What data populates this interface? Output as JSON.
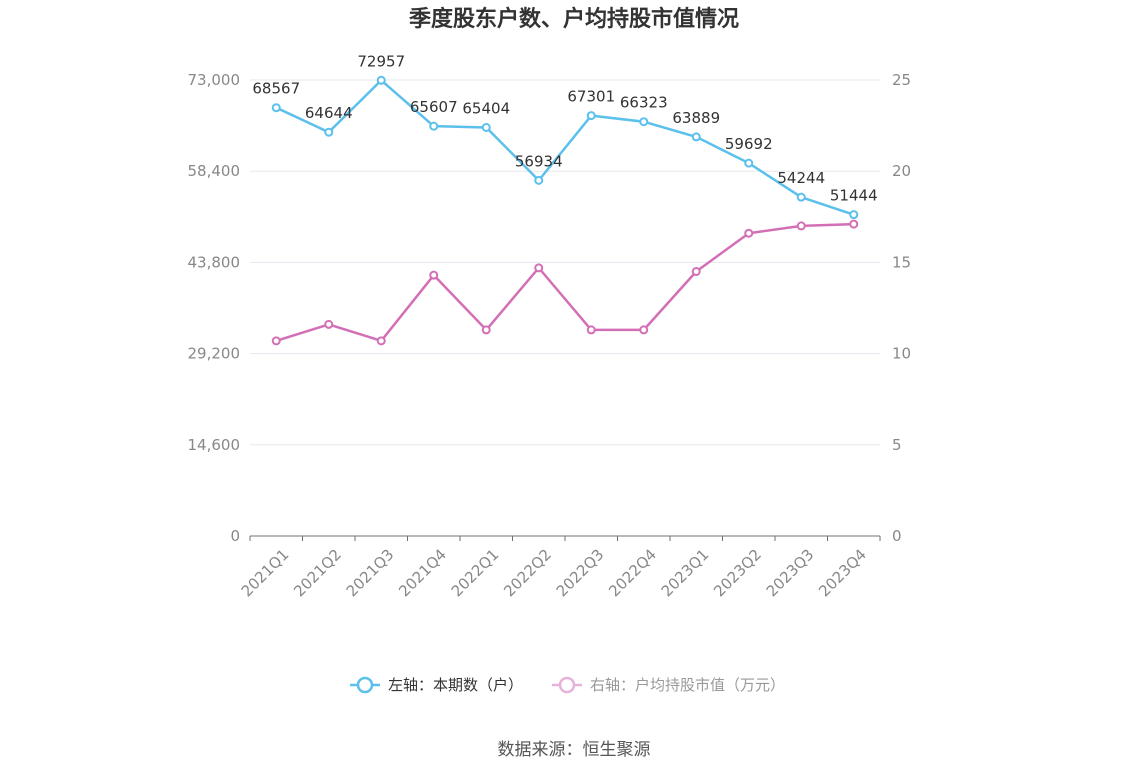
{
  "chart_data": {
    "type": "line",
    "title": "季度股东户数、户均持股市值情况",
    "categories": [
      "2021Q1",
      "2021Q2",
      "2021Q3",
      "2021Q4",
      "2022Q1",
      "2022Q2",
      "2022Q3",
      "2022Q4",
      "2023Q1",
      "2023Q2",
      "2023Q3",
      "2023Q4"
    ],
    "y_left": {
      "ticks": [
        "0",
        "14,600",
        "29,200",
        "43,800",
        "58,400",
        "73,000"
      ],
      "range": [
        0,
        73000
      ]
    },
    "y_right": {
      "ticks": [
        "0",
        "5",
        "10",
        "15",
        "20",
        "25"
      ],
      "range": [
        0,
        25
      ]
    },
    "grid": true,
    "legend_position": "bottom",
    "series": [
      {
        "name": "左轴：本期数（户）",
        "axis": "left",
        "color": "#5bc0eb",
        "values": [
          68567,
          64644,
          72957,
          65607,
          65404,
          56934,
          67301,
          66323,
          63889,
          59692,
          54244,
          51444
        ],
        "labels": [
          "68567",
          "64644",
          "72957",
          "65607",
          "65404",
          "56934",
          "67301",
          "66323",
          "63889",
          "59692",
          "54244",
          "51444"
        ]
      },
      {
        "name": "右轴：户均持股市值（万元）",
        "axis": "right",
        "color": "#d36fb5",
        "values": [
          10.7,
          11.6,
          10.7,
          14.3,
          11.3,
          14.7,
          11.3,
          11.3,
          14.5,
          16.6,
          17.0,
          17.1
        ]
      }
    ]
  },
  "source_text": "数据来源：恒生聚源"
}
